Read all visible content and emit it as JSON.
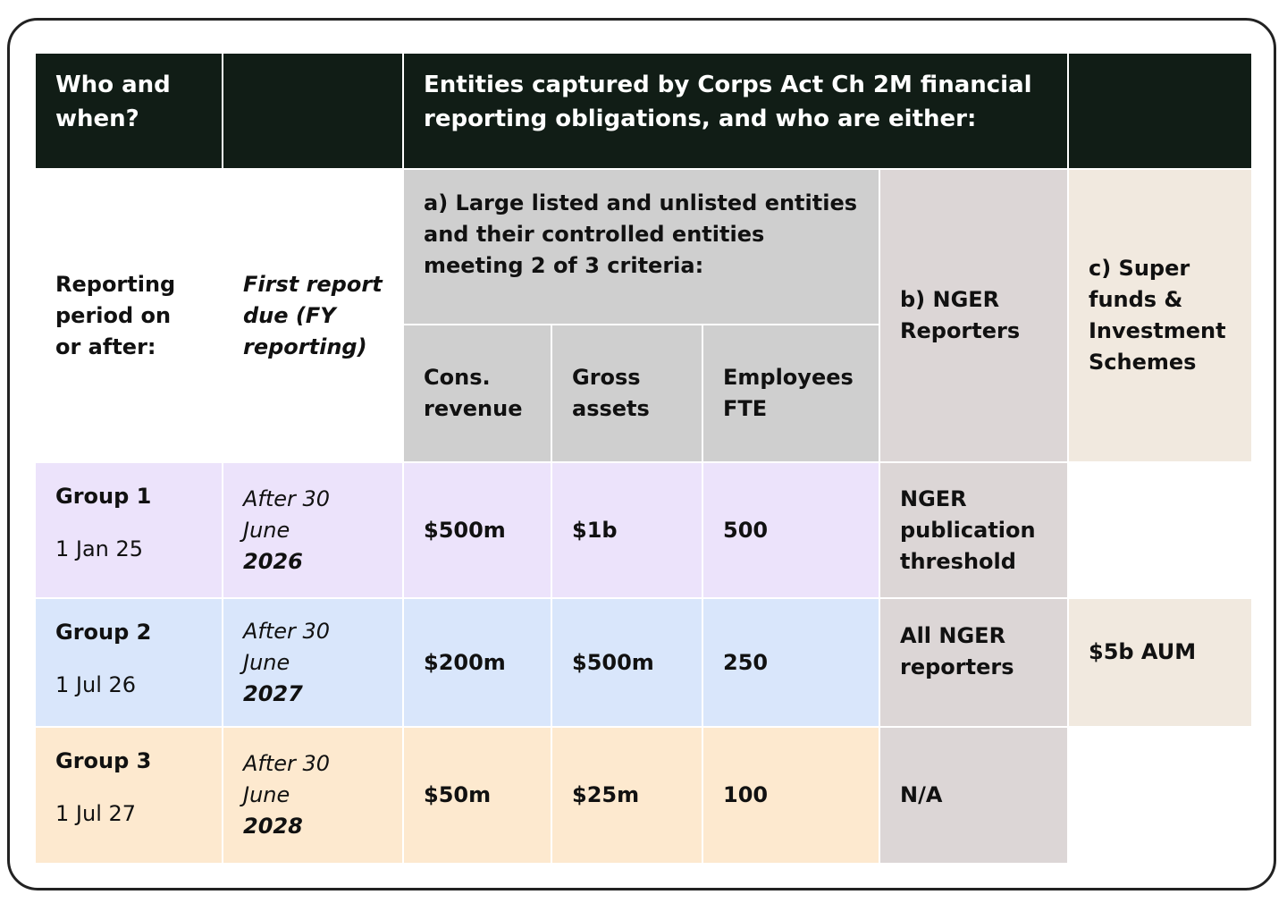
{
  "header": {
    "who": "Who and when?",
    "entities": "Entities captured by Corps Act Ch 2M financial reporting obligations, and who are either:"
  },
  "subheader": {
    "period": "Reporting period on or after:",
    "first_report": "First report due (FY reporting)",
    "large": "a) Large listed and unlisted entities and their controlled entities meeting 2 of 3 criteria:",
    "nger": "b) NGER Reporters",
    "super": "c) Super funds & Investment Schemes",
    "criteria": [
      "Cons. revenue",
      "Gross assets",
      "Employees FTE"
    ]
  },
  "rows": [
    {
      "group": "Group 1",
      "date": "1 Jan 25",
      "due_prefix": "After 30 June",
      "due_year": "2026",
      "revenue": "$500m",
      "assets": "$1b",
      "employees": 500,
      "nger": "NGER publication threshold"
    },
    {
      "group": "Group 2",
      "date": "1 Jul 26",
      "due_prefix": "After 30 June",
      "due_year": "2027",
      "revenue": "$200m",
      "assets": "$500m",
      "employees": 250,
      "nger": "All NGER reporters",
      "super": "$5b AUM"
    },
    {
      "group": "Group 3",
      "date": "1 Jul 27",
      "due_prefix": "After 30 June",
      "due_year": "2028",
      "revenue": "$50m",
      "assets": "$25m",
      "employees": 100,
      "nger": "N/A"
    }
  ]
}
